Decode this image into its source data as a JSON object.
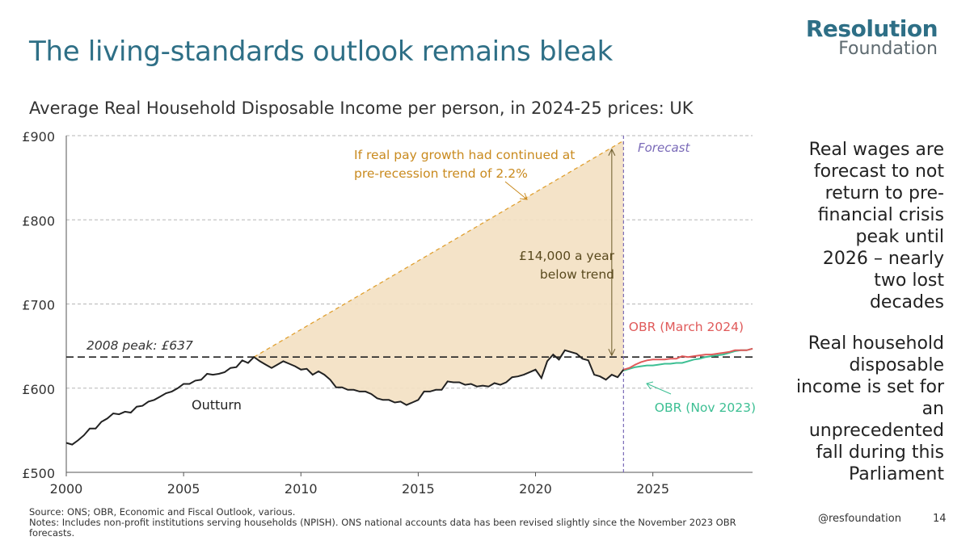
{
  "header": {
    "title": "The living-standards outlook remains bleak",
    "subtitle": "Average Real Household Disposable Income per person, in 2024-25 prices: UK"
  },
  "logo": {
    "line1": "Resolution",
    "line2": "Foundation"
  },
  "sidebar": {
    "text1": "Real wages are forecast to not return to pre-financial crisis peak until 2026 – nearly two lost decades",
    "text2": "Real household disposable income is set for an unprecedented fall during this Parliament"
  },
  "footer": {
    "source": "Source: ONS; OBR, Economic and Fiscal Outlook, various.",
    "notes": "Notes: Includes non-profit institutions serving households (NPISH). ONS national accounts data has been revised slightly since the November 2023 OBR forecasts.",
    "handle": "@resfoundation",
    "page": "14"
  },
  "colors": {
    "outturn": "#222222",
    "trend": "#e0a030",
    "trend_fill": "#f3e0c2",
    "march2024": "#e05a5a",
    "nov2023": "#3cbf93",
    "forecast_line": "#7a6ab8",
    "gap_arrow": "#6b5a2a",
    "title": "#2e6f86"
  },
  "chart_data": {
    "type": "line",
    "xlim": [
      2000,
      2029.25
    ],
    "ylim": [
      500,
      900
    ],
    "xticks": [
      2000,
      2005,
      2010,
      2015,
      2020,
      2025
    ],
    "yticks": [
      500,
      600,
      700,
      800,
      900
    ],
    "ytick_labels": [
      "£500",
      "£600",
      "£700",
      "£800",
      "£900"
    ],
    "grid": true,
    "forecast_start": 2023.75,
    "forecast_label": "Forecast",
    "peak_value": 637,
    "peak_label": "2008 peak: £637",
    "series": [
      {
        "name": "Outturn",
        "points": [
          [
            2000.0,
            535
          ],
          [
            2000.25,
            533
          ],
          [
            2000.5,
            538
          ],
          [
            2000.75,
            544
          ],
          [
            2001.0,
            552
          ],
          [
            2001.25,
            552
          ],
          [
            2001.5,
            560
          ],
          [
            2001.75,
            564
          ],
          [
            2002.0,
            570
          ],
          [
            2002.25,
            569
          ],
          [
            2002.5,
            572
          ],
          [
            2002.75,
            571
          ],
          [
            2003.0,
            578
          ],
          [
            2003.25,
            579
          ],
          [
            2003.5,
            584
          ],
          [
            2003.75,
            586
          ],
          [
            2004.0,
            590
          ],
          [
            2004.25,
            594
          ],
          [
            2004.5,
            596
          ],
          [
            2004.75,
            600
          ],
          [
            2005.0,
            605
          ],
          [
            2005.25,
            605
          ],
          [
            2005.5,
            609
          ],
          [
            2005.75,
            610
          ],
          [
            2006.0,
            617
          ],
          [
            2006.25,
            616
          ],
          [
            2006.5,
            617
          ],
          [
            2006.75,
            619
          ],
          [
            2007.0,
            624
          ],
          [
            2007.25,
            625
          ],
          [
            2007.5,
            633
          ],
          [
            2007.75,
            630
          ],
          [
            2008.0,
            637
          ],
          [
            2008.25,
            632
          ],
          [
            2008.5,
            628
          ],
          [
            2008.75,
            624
          ],
          [
            2009.0,
            628
          ],
          [
            2009.25,
            632
          ],
          [
            2009.5,
            629
          ],
          [
            2009.75,
            626
          ],
          [
            2010.0,
            622
          ],
          [
            2010.25,
            623
          ],
          [
            2010.5,
            616
          ],
          [
            2010.75,
            620
          ],
          [
            2011.0,
            616
          ],
          [
            2011.25,
            610
          ],
          [
            2011.5,
            601
          ],
          [
            2011.75,
            601
          ],
          [
            2012.0,
            598
          ],
          [
            2012.25,
            598
          ],
          [
            2012.5,
            596
          ],
          [
            2012.75,
            596
          ],
          [
            2013.0,
            593
          ],
          [
            2013.25,
            588
          ],
          [
            2013.5,
            586
          ],
          [
            2013.75,
            586
          ],
          [
            2014.0,
            583
          ],
          [
            2014.25,
            584
          ],
          [
            2014.5,
            580
          ],
          [
            2014.75,
            583
          ],
          [
            2015.0,
            586
          ],
          [
            2015.25,
            596
          ],
          [
            2015.5,
            596
          ],
          [
            2015.75,
            598
          ],
          [
            2016.0,
            598
          ],
          [
            2016.25,
            608
          ],
          [
            2016.5,
            607
          ],
          [
            2016.75,
            607
          ],
          [
            2017.0,
            604
          ],
          [
            2017.25,
            605
          ],
          [
            2017.5,
            602
          ],
          [
            2017.75,
            603
          ],
          [
            2018.0,
            602
          ],
          [
            2018.25,
            606
          ],
          [
            2018.5,
            604
          ],
          [
            2018.75,
            607
          ],
          [
            2019.0,
            613
          ],
          [
            2019.25,
            614
          ],
          [
            2019.5,
            616
          ],
          [
            2019.75,
            619
          ],
          [
            2020.0,
            622
          ],
          [
            2020.25,
            612
          ],
          [
            2020.5,
            632
          ],
          [
            2020.75,
            640
          ],
          [
            2021.0,
            634
          ],
          [
            2021.25,
            645
          ],
          [
            2021.5,
            643
          ],
          [
            2021.75,
            641
          ],
          [
            2022.0,
            635
          ],
          [
            2022.25,
            633
          ],
          [
            2022.5,
            616
          ],
          [
            2022.75,
            614
          ],
          [
            2023.0,
            610
          ],
          [
            2023.25,
            616
          ],
          [
            2023.5,
            613
          ],
          [
            2023.75,
            622
          ]
        ]
      },
      {
        "name": "OBR (March 2024)",
        "points": [
          [
            2023.75,
            622
          ],
          [
            2024.0,
            624
          ],
          [
            2024.25,
            628
          ],
          [
            2024.5,
            631
          ],
          [
            2024.75,
            633
          ],
          [
            2025.0,
            634
          ],
          [
            2025.25,
            634
          ],
          [
            2025.5,
            634
          ],
          [
            2025.75,
            635
          ],
          [
            2026.0,
            635
          ],
          [
            2026.25,
            638
          ],
          [
            2026.5,
            637
          ],
          [
            2026.75,
            638
          ],
          [
            2027.0,
            639
          ],
          [
            2027.25,
            640
          ],
          [
            2027.5,
            640
          ],
          [
            2027.75,
            641
          ],
          [
            2028.0,
            642
          ],
          [
            2028.25,
            643
          ],
          [
            2028.5,
            645
          ],
          [
            2028.75,
            645
          ],
          [
            2029.0,
            645
          ],
          [
            2029.25,
            647
          ]
        ]
      },
      {
        "name": "OBR (Nov 2023)",
        "points": [
          [
            2023.75,
            621
          ],
          [
            2024.0,
            623
          ],
          [
            2024.25,
            625
          ],
          [
            2024.5,
            626
          ],
          [
            2024.75,
            627
          ],
          [
            2025.0,
            627
          ],
          [
            2025.25,
            628
          ],
          [
            2025.5,
            629
          ],
          [
            2025.75,
            629
          ],
          [
            2026.0,
            630
          ],
          [
            2026.25,
            630
          ],
          [
            2026.5,
            632
          ],
          [
            2026.75,
            634
          ],
          [
            2027.0,
            635
          ],
          [
            2027.25,
            637
          ],
          [
            2027.5,
            638
          ],
          [
            2027.75,
            639
          ],
          [
            2028.0,
            640
          ],
          [
            2028.25,
            642
          ],
          [
            2028.5,
            644
          ],
          [
            2028.75,
            645
          ],
          [
            2029.0,
            645
          ],
          [
            2029.25,
            647
          ]
        ]
      },
      {
        "name": "pre-recession trend of 2.2%",
        "points": [
          [
            2008.0,
            637
          ],
          [
            2023.75,
            894
          ]
        ]
      }
    ],
    "annotations": {
      "trend_line1": "If real pay growth had continued at",
      "trend_line2": "pre-recession trend of 2.2%",
      "gap_line1": "£14,000 a year",
      "gap_line2": "below trend",
      "outturn": "Outturn",
      "march2024": "OBR (March 2024)",
      "nov2023": "OBR (Nov 2023)"
    }
  }
}
